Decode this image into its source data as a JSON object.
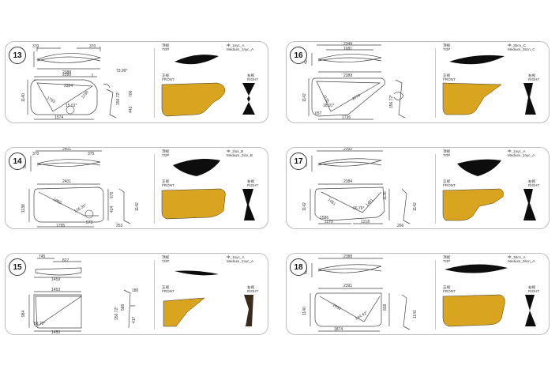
{
  "cards": [
    {
      "num": "13",
      "code": "中_1nyc_A",
      "name": "Medium_1nyc_A",
      "top_cn": "顶视",
      "top_en": "TOP",
      "front_cn": "正视",
      "front_en": "FRONT",
      "right_cn": "右视",
      "right_en": "RIGHT",
      "dims": {
        "a": "370",
        "b": "370",
        "c": "2388",
        "d": "500",
        "e": "2390",
        "f": "1140",
        "g": "1574",
        "h": "2324",
        "i": "1793",
        "j": "1230",
        "k": "15.01°",
        "l": "156.72°",
        "m": "706",
        "n": "442",
        "o": "73.99°"
      }
    },
    {
      "num": "16",
      "code": "中_3bcn_C",
      "name": "Medium_3bcn_C",
      "top_cn": "顶视",
      "top_en": "TOP",
      "front_cn": "正视",
      "front_en": "FRONT",
      "right_cn": "右视",
      "right_en": "RIGHT",
      "dims": {
        "a": "2349",
        "b": "1681",
        "c": "424",
        "d": "2388",
        "e": "1142",
        "f": "1736",
        "g": "2074",
        "h": "1135",
        "i": "18.91°",
        "j": "156.72°",
        "k": "657"
      }
    },
    {
      "num": "14",
      "code": "中_2lox_B",
      "name": "Medium_2lox_B",
      "top_cn": "顶视",
      "top_en": "TOP",
      "front_cn": "正视",
      "front_en": "FRONT",
      "right_cn": "右视",
      "right_en": "RIGHT",
      "dims": {
        "a": "2401",
        "b": "370",
        "c": "370",
        "d": "500",
        "e": "2401",
        "f": "1138",
        "g": "1795",
        "h": "573",
        "i": "1982",
        "j": "126.35°",
        "k": "424",
        "l": "676",
        "m": "1142",
        "n": "253"
      }
    },
    {
      "num": "17",
      "code": "中_1nyc_A",
      "name": "Medium_1nyc_A",
      "top_cn": "顶视",
      "top_en": "TOP",
      "front_cn": "正视",
      "front_en": "FRONT",
      "right_cn": "右视",
      "right_en": "RIGHT",
      "dims": {
        "a": "2392",
        "b": "500",
        "c": "2384",
        "d": "1142",
        "e": "1461",
        "f": "1173",
        "g": "1218",
        "h": "1586",
        "i": "1461",
        "j": "66.76°",
        "k": "1136",
        "l": "1142",
        "m": "266"
      }
    },
    {
      "num": "15",
      "code": "中_1nyc_A",
      "name": "Medium_1nyc_A",
      "top_cn": "顶视",
      "top_en": "TOP",
      "front_cn": "正视",
      "front_en": "FRONT",
      "right_cn": "右视",
      "right_en": "RIGHT",
      "dims": {
        "a": "745",
        "b": "827",
        "c": "1459",
        "d": "1453",
        "e": "984",
        "f": "1450",
        "g": "58.72°",
        "h": "156.72°",
        "i": "586",
        "j": "417",
        "k": "180"
      }
    },
    {
      "num": "18",
      "code": "中_3bcn_A",
      "name": "Medium_3bcn_A",
      "top_cn": "顶视",
      "top_en": "TOP",
      "front_cn": "正视",
      "front_en": "FRONT",
      "right_cn": "右视",
      "right_en": "RIGHT",
      "dims": {
        "a": "2388",
        "b": "500",
        "c": "2391",
        "d": "1140",
        "e": "1874",
        "f": "2050",
        "g": "144.42°",
        "h": "826",
        "i": "1141"
      }
    }
  ],
  "colors": {
    "gold": "#d9a520",
    "black": "#0d0d0d",
    "line": "#444444",
    "frame": "#bdbdbd"
  }
}
